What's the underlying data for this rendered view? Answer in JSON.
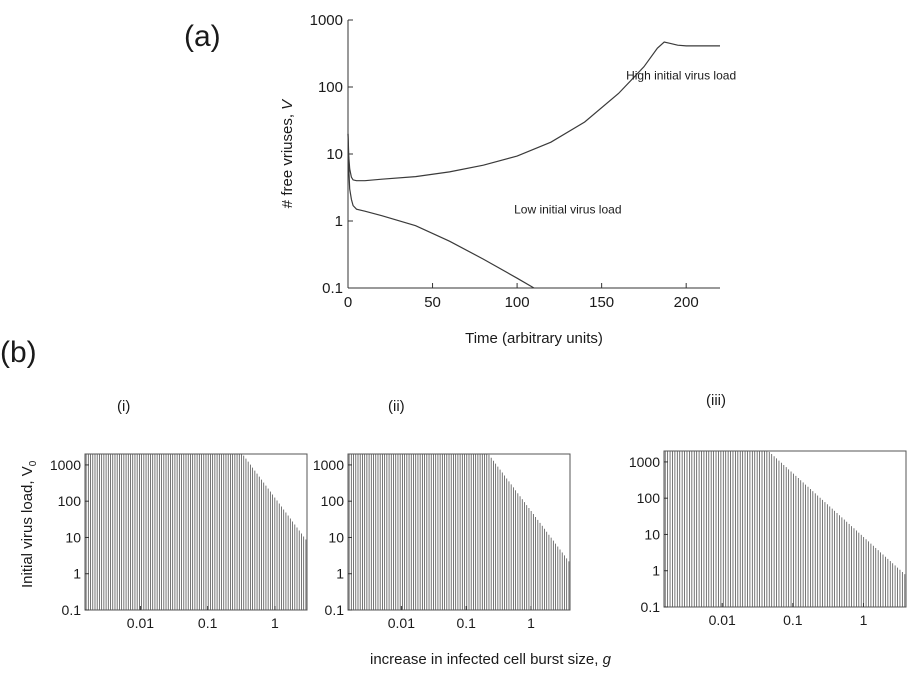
{
  "figure": {
    "panel_a_label": "(a)",
    "panel_b_label": "(b)",
    "subpanel_labels": [
      "(i)",
      "(ii)",
      "(iii)"
    ],
    "panel_b_ylabel": "Initial virus load, V",
    "panel_b_ylabel_sub": "0",
    "panel_b_xlabel": "increase in infected cell burst size,",
    "panel_b_xlabel_var": "g"
  },
  "chart_data": [
    {
      "type": "line",
      "xlabel": "Time (arbitrary units)",
      "ylabel": "# free vriuses,",
      "ylabel_var": "V",
      "yscale": "log",
      "xlim": [
        0,
        220
      ],
      "ylim": [
        0.1,
        1000
      ],
      "xticks": [
        "0",
        "50",
        "100",
        "150",
        "200"
      ],
      "yticks": [
        "0.1",
        "1",
        "10",
        "100",
        "1000"
      ],
      "series": [
        {
          "name": "High initial virus load",
          "x": [
            0,
            0.5,
            1,
            2,
            3,
            5,
            10,
            20,
            40,
            60,
            80,
            100,
            120,
            140,
            160,
            175,
            183,
            187,
            190,
            195,
            200,
            210,
            220
          ],
          "y": [
            20,
            9,
            6,
            4.5,
            4.1,
            4.0,
            4.0,
            4.2,
            4.6,
            5.4,
            6.8,
            9.3,
            15,
            30,
            80,
            200,
            380,
            470,
            450,
            420,
            410,
            410,
            410
          ]
        },
        {
          "name": "Low initial virus load",
          "x": [
            0,
            0.5,
            1,
            2,
            3,
            5,
            10,
            20,
            40,
            60,
            80,
            100,
            110
          ],
          "y": [
            20,
            6,
            3,
            2.1,
            1.7,
            1.5,
            1.4,
            1.2,
            0.85,
            0.5,
            0.27,
            0.14,
            0.1
          ]
        }
      ],
      "annotations": [
        {
          "text": "High initial virus load",
          "x": 197,
          "y": 130
        },
        {
          "text": "Low initial virus load",
          "x": 130,
          "y": 1.3
        }
      ]
    },
    {
      "type": "bar",
      "panel": "(i)",
      "xscale": "log",
      "yscale": "log",
      "xlim": [
        0.0015,
        3.0
      ],
      "ylim": [
        0.1,
        2000
      ],
      "xticks": [
        "0.01",
        "0.1",
        "1"
      ],
      "yticks": [
        "0.1",
        "1",
        "10",
        "100",
        "1000"
      ],
      "n_lines": 100,
      "plateau": 2000,
      "threshold_g": 0.33,
      "end_value": 8
    },
    {
      "type": "bar",
      "panel": "(ii)",
      "xscale": "log",
      "yscale": "log",
      "xlim": [
        0.0015,
        4.0
      ],
      "ylim": [
        0.1,
        2000
      ],
      "xticks": [
        "0.01",
        "0.1",
        "1"
      ],
      "yticks": [
        "0.1",
        "1",
        "10",
        "100",
        "1000"
      ],
      "n_lines": 100,
      "plateau": 2000,
      "threshold_g": 0.22,
      "end_value": 2
    },
    {
      "type": "bar",
      "panel": "(iii)",
      "xscale": "log",
      "yscale": "log",
      "xlim": [
        0.0015,
        4.0
      ],
      "ylim": [
        0.1,
        2000
      ],
      "xticks": [
        "0.01",
        "0.1",
        "1"
      ],
      "yticks": [
        "0.1",
        "1",
        "10",
        "100",
        "1000"
      ],
      "n_lines": 100,
      "plateau": 2000,
      "threshold_g": 0.045,
      "end_value": 0.75
    }
  ]
}
